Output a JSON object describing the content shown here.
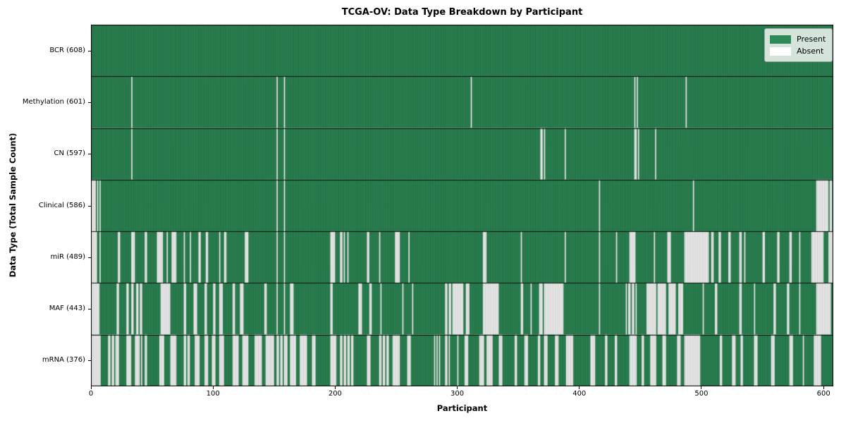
{
  "chart_data": {
    "type": "heatmap",
    "title": "TCGA-OV: Data Type Breakdown by Participant",
    "xlabel": "Participant",
    "ylabel": "Data Type (Total Sample Count)",
    "x_ticks": [
      0,
      100,
      200,
      300,
      400,
      500,
      600
    ],
    "n_participants": 608,
    "xlim": [
      0,
      608
    ],
    "grid": "row-dividers",
    "legend_position": "upper-right",
    "colors": {
      "present": "#2e8b57",
      "absent": "#ffffff",
      "cell_edge": "rgba(0,0,0,0.40)",
      "row_divider": "#000000",
      "axes_border": "#000000"
    },
    "legend": [
      {
        "label": "Present",
        "color": "#2e8b57"
      },
      {
        "label": "Absent",
        "color": "#ffffff"
      }
    ],
    "rows": [
      {
        "label": "BCR (608)",
        "data_type": "BCR",
        "present_count": 608,
        "absent_ranges": []
      },
      {
        "label": "Methylation (601)",
        "data_type": "Methylation",
        "present_count": 601,
        "absent_ranges": [
          [
            33,
            33
          ],
          [
            152,
            152
          ],
          [
            158,
            158
          ],
          [
            311,
            311
          ],
          [
            445,
            445
          ],
          [
            447,
            447
          ],
          [
            487,
            487
          ]
        ]
      },
      {
        "label": "CN (597)",
        "data_type": "CN",
        "present_count": 597,
        "absent_ranges": [
          [
            33,
            33
          ],
          [
            152,
            152
          ],
          [
            158,
            158
          ],
          [
            368,
            369
          ],
          [
            371,
            371
          ],
          [
            388,
            388
          ],
          [
            445,
            446
          ],
          [
            448,
            448
          ],
          [
            462,
            462
          ]
        ]
      },
      {
        "label": "Clinical (586)",
        "data_type": "Clinical",
        "present_count": 586,
        "absent_ranges": [
          [
            0,
            3
          ],
          [
            5,
            5
          ],
          [
            7,
            7
          ],
          [
            152,
            152
          ],
          [
            158,
            158
          ],
          [
            416,
            416
          ],
          [
            493,
            493
          ],
          [
            594,
            603
          ],
          [
            605,
            606
          ]
        ]
      },
      {
        "label": "miR (489)",
        "data_type": "miR",
        "present_count": 489,
        "absent_ranges": [
          [
            0,
            4
          ],
          [
            7,
            7
          ],
          [
            22,
            23
          ],
          [
            33,
            35
          ],
          [
            44,
            45
          ],
          [
            54,
            58
          ],
          [
            62,
            62
          ],
          [
            66,
            69
          ],
          [
            76,
            76
          ],
          [
            81,
            81
          ],
          [
            88,
            89
          ],
          [
            94,
            95
          ],
          [
            105,
            105
          ],
          [
            109,
            110
          ],
          [
            126,
            128
          ],
          [
            152,
            152
          ],
          [
            158,
            158
          ],
          [
            196,
            199
          ],
          [
            204,
            205
          ],
          [
            207,
            207
          ],
          [
            210,
            210
          ],
          [
            226,
            227
          ],
          [
            236,
            236
          ],
          [
            249,
            252
          ],
          [
            260,
            260
          ],
          [
            321,
            323
          ],
          [
            352,
            352
          ],
          [
            388,
            388
          ],
          [
            416,
            416
          ],
          [
            430,
            430
          ],
          [
            441,
            445
          ],
          [
            461,
            461
          ],
          [
            472,
            474
          ],
          [
            486,
            505
          ],
          [
            508,
            509
          ],
          [
            514,
            515
          ],
          [
            522,
            523
          ],
          [
            531,
            532
          ],
          [
            535,
            535
          ],
          [
            550,
            551
          ],
          [
            562,
            563
          ],
          [
            572,
            573
          ],
          [
            580,
            580
          ],
          [
            590,
            599
          ],
          [
            604,
            607
          ]
        ]
      },
      {
        "label": "MAF (443)",
        "data_type": "MAF",
        "present_count": 443,
        "absent_ranges": [
          [
            0,
            6
          ],
          [
            21,
            22
          ],
          [
            29,
            30
          ],
          [
            33,
            34
          ],
          [
            37,
            38
          ],
          [
            40,
            41
          ],
          [
            57,
            64
          ],
          [
            76,
            77
          ],
          [
            84,
            86
          ],
          [
            93,
            94
          ],
          [
            100,
            101
          ],
          [
            105,
            107
          ],
          [
            116,
            117
          ],
          [
            122,
            124
          ],
          [
            142,
            143
          ],
          [
            152,
            152
          ],
          [
            158,
            158
          ],
          [
            163,
            165
          ],
          [
            196,
            197
          ],
          [
            219,
            221
          ],
          [
            228,
            229
          ],
          [
            237,
            237
          ],
          [
            255,
            255
          ],
          [
            263,
            263
          ],
          [
            290,
            291
          ],
          [
            293,
            294
          ],
          [
            296,
            304
          ],
          [
            307,
            309
          ],
          [
            321,
            333
          ],
          [
            352,
            353
          ],
          [
            360,
            360
          ],
          [
            367,
            369
          ],
          [
            371,
            386
          ],
          [
            416,
            416
          ],
          [
            438,
            438
          ],
          [
            440,
            441
          ],
          [
            443,
            444
          ],
          [
            446,
            446
          ],
          [
            455,
            462
          ],
          [
            464,
            470
          ],
          [
            473,
            478
          ],
          [
            481,
            484
          ],
          [
            501,
            501
          ],
          [
            511,
            512
          ],
          [
            531,
            532
          ],
          [
            543,
            543
          ],
          [
            559,
            560
          ],
          [
            570,
            571
          ],
          [
            580,
            580
          ],
          [
            594,
            605
          ]
        ]
      },
      {
        "label": "mRNA (376)",
        "data_type": "mRNA",
        "present_count": 376,
        "absent_ranges": [
          [
            0,
            7
          ],
          [
            14,
            15
          ],
          [
            17,
            18
          ],
          [
            20,
            22
          ],
          [
            29,
            32
          ],
          [
            36,
            39
          ],
          [
            41,
            41
          ],
          [
            44,
            45
          ],
          [
            56,
            59
          ],
          [
            65,
            69
          ],
          [
            76,
            77
          ],
          [
            79,
            80
          ],
          [
            85,
            88
          ],
          [
            93,
            95
          ],
          [
            99,
            101
          ],
          [
            105,
            108
          ],
          [
            116,
            120
          ],
          [
            124,
            128
          ],
          [
            134,
            139
          ],
          [
            143,
            149
          ],
          [
            152,
            153
          ],
          [
            155,
            156
          ],
          [
            158,
            160
          ],
          [
            163,
            167
          ],
          [
            171,
            176
          ],
          [
            181,
            183
          ],
          [
            196,
            200
          ],
          [
            204,
            205
          ],
          [
            207,
            208
          ],
          [
            210,
            211
          ],
          [
            213,
            214
          ],
          [
            226,
            228
          ],
          [
            236,
            237
          ],
          [
            239,
            240
          ],
          [
            242,
            243
          ],
          [
            247,
            252
          ],
          [
            259,
            261
          ],
          [
            281,
            281
          ],
          [
            283,
            283
          ],
          [
            285,
            285
          ],
          [
            290,
            291
          ],
          [
            293,
            293
          ],
          [
            300,
            300
          ],
          [
            306,
            308
          ],
          [
            318,
            321
          ],
          [
            324,
            328
          ],
          [
            334,
            336
          ],
          [
            347,
            348
          ],
          [
            355,
            357
          ],
          [
            366,
            367
          ],
          [
            371,
            373
          ],
          [
            380,
            382
          ],
          [
            389,
            394
          ],
          [
            409,
            412
          ],
          [
            421,
            422
          ],
          [
            429,
            430
          ],
          [
            441,
            446
          ],
          [
            451,
            452
          ],
          [
            458,
            462
          ],
          [
            468,
            470
          ],
          [
            480,
            482
          ],
          [
            486,
            498
          ],
          [
            515,
            516
          ],
          [
            525,
            527
          ],
          [
            532,
            533
          ],
          [
            543,
            545
          ],
          [
            557,
            559
          ],
          [
            572,
            574
          ],
          [
            583,
            583
          ],
          [
            592,
            597
          ]
        ]
      }
    ]
  }
}
